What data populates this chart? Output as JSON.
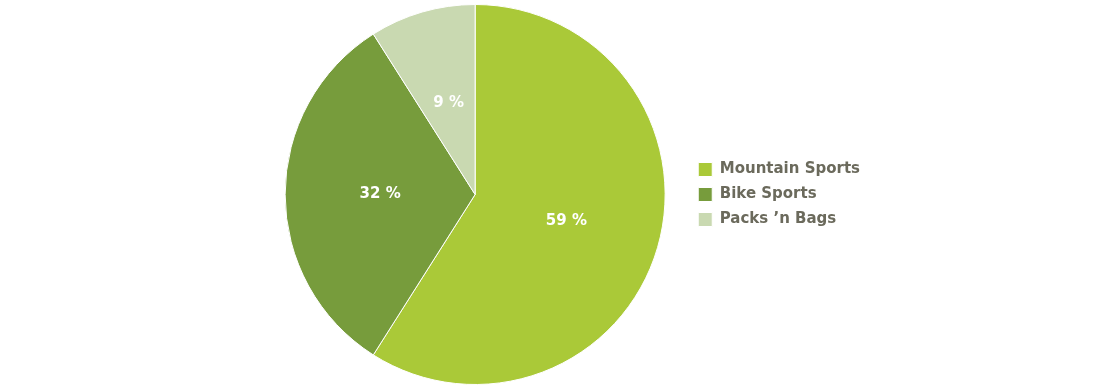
{
  "chart_data": {
    "type": "pie",
    "categories": [
      "Mountain Sports",
      "Bike Sports",
      "Packs ’n Bags"
    ],
    "values": [
      59,
      32,
      9
    ],
    "colors": [
      "#aac938",
      "#779c3c",
      "#c9d9b1"
    ],
    "value_labels": [
      "59 %",
      "32 %",
      "9 %"
    ],
    "legend": "right"
  }
}
